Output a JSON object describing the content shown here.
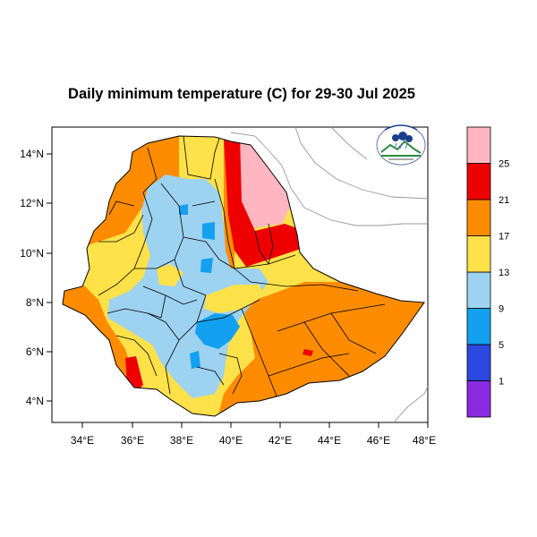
{
  "title": "Daily minimum temperature (C) for 29-30 Jul 2025",
  "map": {
    "lon_range": [
      33,
      48.2
    ],
    "lat_range": [
      3.2,
      15
    ],
    "x_ticks": [
      "34°E",
      "36°E",
      "38°E",
      "40°E",
      "42°E",
      "44°E",
      "46°E",
      "48°E"
    ],
    "y_ticks": [
      "14°N",
      "12°N",
      "10°N",
      "8°N",
      "6°N",
      "4°N"
    ]
  },
  "legend": {
    "colors": [
      "#8a2be2",
      "#2b48e0",
      "#14a0f0",
      "#9dd2f0",
      "#ffe14a",
      "#ff8c00",
      "#ee0000",
      "#ffb6c1"
    ],
    "labels": [
      "1",
      "5",
      "9",
      "13",
      "17",
      "21",
      "25"
    ]
  },
  "logo": {
    "name": "weather-agency-logo"
  }
}
